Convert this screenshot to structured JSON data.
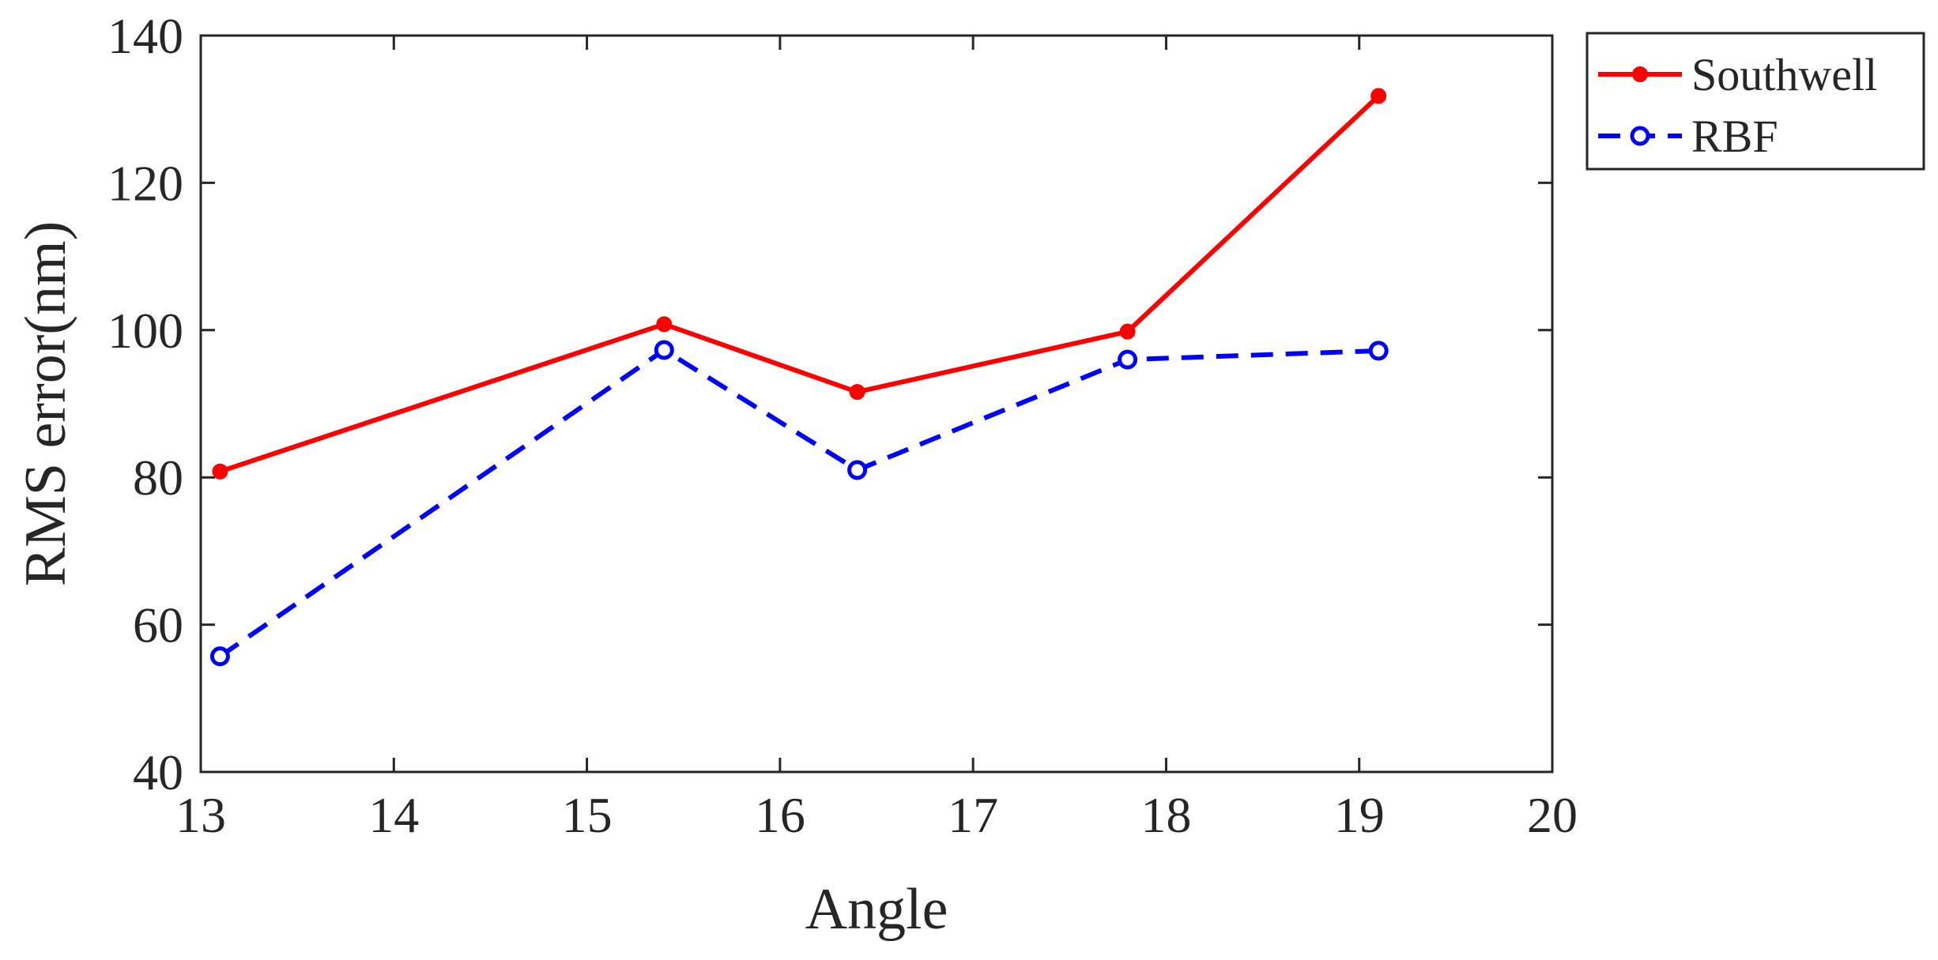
{
  "chart_data": {
    "type": "line",
    "title": "",
    "xlabel": "Angle",
    "ylabel": "RMS error(nm)",
    "xlim": [
      13,
      20
    ],
    "ylim": [
      40,
      140
    ],
    "xticks": [
      13,
      14,
      15,
      16,
      17,
      18,
      19,
      20
    ],
    "yticks": [
      40,
      60,
      80,
      100,
      120,
      140
    ],
    "grid": false,
    "legend_position": "outside-top-right",
    "series": [
      {
        "name": "Southwell",
        "color": "#ff0000",
        "line_style": "solid",
        "marker": "filled-circle",
        "x": [
          13.1,
          15.4,
          16.4,
          17.8,
          19.1
        ],
        "y": [
          80.8,
          100.8,
          91.6,
          99.8,
          131.8
        ]
      },
      {
        "name": "RBF",
        "color": "#0000ff",
        "line_style": "dashed",
        "marker": "open-circle",
        "x": [
          13.1,
          15.4,
          16.4,
          17.8,
          19.1
        ],
        "y": [
          55.7,
          97.3,
          81.0,
          96.0,
          97.2
        ]
      }
    ]
  }
}
